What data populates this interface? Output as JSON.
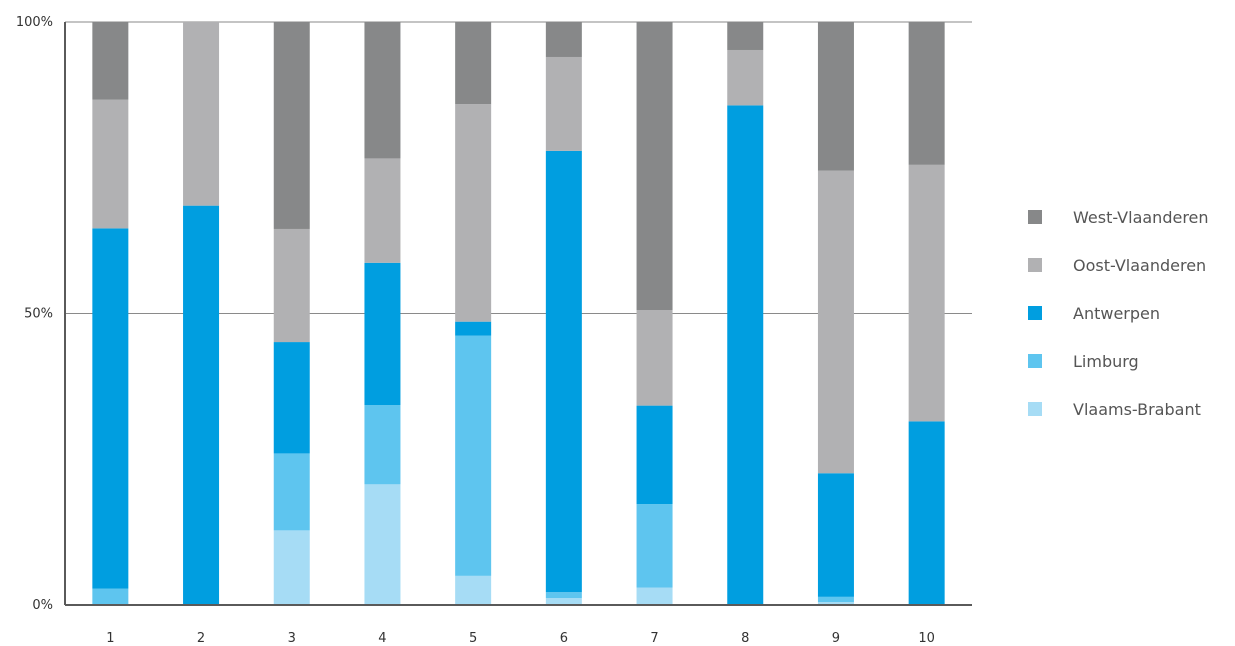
{
  "chart_data": {
    "type": "bar",
    "stacked": true,
    "stack_order_bottom_to_top": [
      "Vlaams-Brabant",
      "Limburg",
      "Antwerpen",
      "Oost-Vlaanderen",
      "West-Vlaanderen"
    ],
    "categories": [
      "1",
      "2",
      "3",
      "4",
      "5",
      "6",
      "7",
      "8",
      "9",
      "10"
    ],
    "y_ticks": [
      "0%",
      "50%",
      "100%"
    ],
    "ylim": [
      0,
      100
    ],
    "grid": "horizontal",
    "legend_position": "right",
    "series": [
      {
        "name": "Vlaams-Brabant",
        "color": "#a6dcf5",
        "values": [
          0,
          0,
          12.8,
          20.7,
          5.0,
          1.2,
          3.0,
          0,
          0.5,
          0
        ]
      },
      {
        "name": "Limburg",
        "color": "#5ec5ef",
        "values": [
          2.8,
          0,
          13.2,
          13.6,
          41.2,
          1.0,
          14.3,
          0,
          0.9,
          0
        ]
      },
      {
        "name": "Antwerpen",
        "color": "#009ee0",
        "values": [
          61.8,
          68.5,
          19.1,
          24.4,
          2.4,
          75.7,
          16.9,
          85.7,
          21.2,
          31.5
        ]
      },
      {
        "name": "Oost-Vlaanderen",
        "color": "#b1b1b3",
        "values": [
          22.1,
          31.5,
          19.4,
          17.9,
          37.3,
          16.1,
          16.4,
          9.5,
          51.9,
          44.0
        ]
      },
      {
        "name": "West-Vlaanderen",
        "color": "#878889",
        "values": [
          13.3,
          0,
          35.5,
          23.4,
          14.1,
          6.0,
          49.4,
          4.8,
          25.5,
          24.5
        ]
      }
    ]
  }
}
